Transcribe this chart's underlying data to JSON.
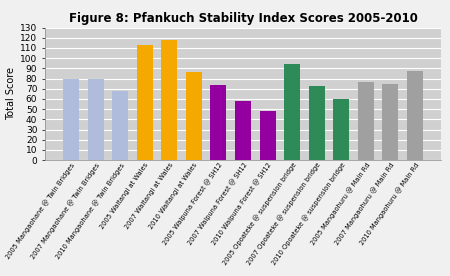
{
  "title": "Figure 8: Pfankuch Stability Index Scores 2005-2010",
  "ylabel": "Total Score",
  "ylim": [
    0,
    130
  ],
  "yticks": [
    0,
    10,
    20,
    30,
    40,
    50,
    60,
    70,
    80,
    90,
    100,
    110,
    120,
    130
  ],
  "categories": [
    "2005 Mangaohane @ Twin Bridges",
    "2007 Mangaohane @ Twin Bridges",
    "2010 Mangaohane @ Twin Bridges",
    "2005 Waitangi at Wales",
    "2007 Waitangi at Wales",
    "2010 Waitangi at Wales",
    "2005 Waipuna Forest @ SH12",
    "2007 Waipuna Forest @ SH12",
    "2010 Waipuna Forest @ SH12",
    "2005 Opoateke @ suspension bridge",
    "2007 Opoateke @ suspension bridge",
    "2010 Opoateke @ suspension bridge",
    "2005 Mangaohuru @ Main Rd",
    "2007 Mangaohuru @ Main Rd",
    "2010 Mangaohuru @ Main Rd"
  ],
  "values": [
    80,
    80,
    68,
    113,
    118,
    86,
    74,
    58,
    48,
    94,
    73,
    60,
    77,
    75,
    87
  ],
  "colors": [
    "#b0bcdc",
    "#b0bcdc",
    "#b0bcdc",
    "#f5a800",
    "#f5a800",
    "#f5a800",
    "#9400a0",
    "#9400a0",
    "#9400a0",
    "#2e8b57",
    "#2e8b57",
    "#2e8b57",
    "#a0a0a0",
    "#a0a0a0",
    "#a0a0a0"
  ],
  "figure_bg": "#f0f0f0",
  "plot_bg": "#d0d0d0",
  "grid_color": "#ffffff",
  "title_fontsize": 8.5,
  "ylabel_fontsize": 7,
  "ytick_fontsize": 6.5,
  "xtick_fontsize": 4.8,
  "bar_width": 0.65
}
